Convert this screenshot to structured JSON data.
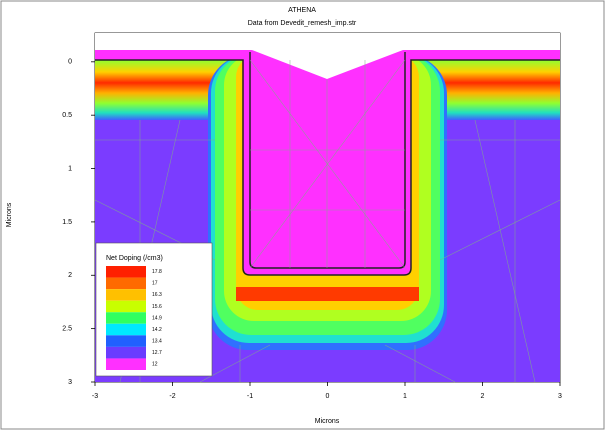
{
  "chart_data": {
    "type": "contour",
    "title": "ATHENA",
    "subtitle": "Data from Devedit_remesh_imp.str",
    "xlabel": "Microns",
    "ylabel": "Microns",
    "xlim": [
      -3,
      3
    ],
    "ylim": [
      -0.27,
      3
    ],
    "y_inverted": true,
    "xticks": [
      -3,
      -2,
      -1,
      0,
      1,
      2,
      3
    ],
    "yticks": [
      0,
      0.5,
      1,
      1.5,
      2,
      2.5,
      3
    ],
    "legend": {
      "title": "Net Doping (/cm3)",
      "position": "lower left",
      "levels": [
        17.8,
        17,
        16.3,
        15.6,
        14.9,
        14.2,
        13.4,
        12.7,
        12
      ],
      "colors": [
        "#ff2000",
        "#ff6a00",
        "#ffc000",
        "#c8ff00",
        "#30ff60",
        "#00e8ff",
        "#2060ff",
        "#6a3cff",
        "#ff30ff"
      ]
    }
  }
}
